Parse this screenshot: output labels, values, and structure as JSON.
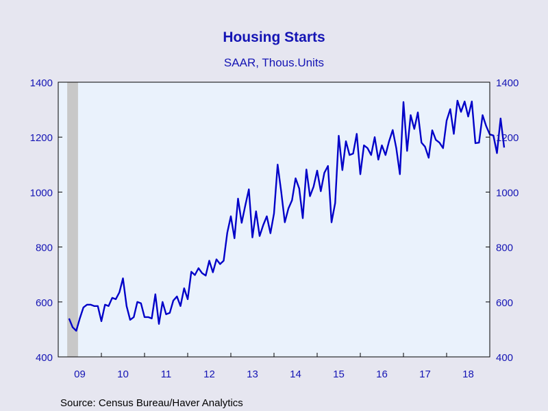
{
  "chart_data": {
    "type": "line",
    "title": "Housing Starts",
    "subtitle": "SAAR, Thous.Units",
    "source": "Source:  Census Bureau/Haver Analytics",
    "ylim": [
      400,
      1400
    ],
    "yticks": [
      "1400",
      "1200",
      "1000",
      "800",
      "600",
      "400"
    ],
    "xlabels": [
      "09",
      "10",
      "11",
      "12",
      "13",
      "14",
      "15",
      "16",
      "17",
      "18"
    ],
    "recession_shading": {
      "start": "2009-04",
      "end": "2009-06"
    },
    "colors": {
      "line": "#0000c8",
      "axis_text": "#1414b4",
      "plot_bg": "#eaf2fc",
      "recession": "#c8c8c8",
      "page_bg": "#e6e6f0"
    },
    "series": [
      {
        "start": "2009-04",
        "values": [
          540,
          508,
          495,
          540,
          580,
          590,
          590,
          585,
          585,
          530,
          590,
          585,
          615,
          610,
          635,
          686,
          585,
          535,
          545,
          600,
          595,
          545,
          545,
          540,
          628,
          520,
          600,
          555,
          560,
          605,
          620,
          585,
          650,
          610,
          710,
          698,
          723,
          705,
          696,
          750,
          708,
          755,
          738,
          750,
          852,
          912,
          832,
          976,
          888,
          950,
          1010,
          835,
          930,
          840,
          880,
          912,
          850,
          922,
          1100,
          1002,
          890,
          940,
          970,
          1050,
          1013,
          905,
          1082,
          985,
          1020,
          1078,
          1003,
          1070,
          1095,
          890,
          960,
          1205,
          1080,
          1185,
          1135,
          1140,
          1212,
          1065,
          1170,
          1160,
          1135,
          1200,
          1118,
          1170,
          1135,
          1185,
          1226,
          1160,
          1065,
          1328,
          1150,
          1280,
          1230,
          1290,
          1180,
          1165,
          1125,
          1225,
          1190,
          1180,
          1160,
          1260,
          1302,
          1212,
          1333,
          1292,
          1330,
          1275,
          1330,
          1178,
          1180,
          1280,
          1240,
          1210,
          1206,
          1142,
          1268,
          1162
        ]
      }
    ]
  }
}
